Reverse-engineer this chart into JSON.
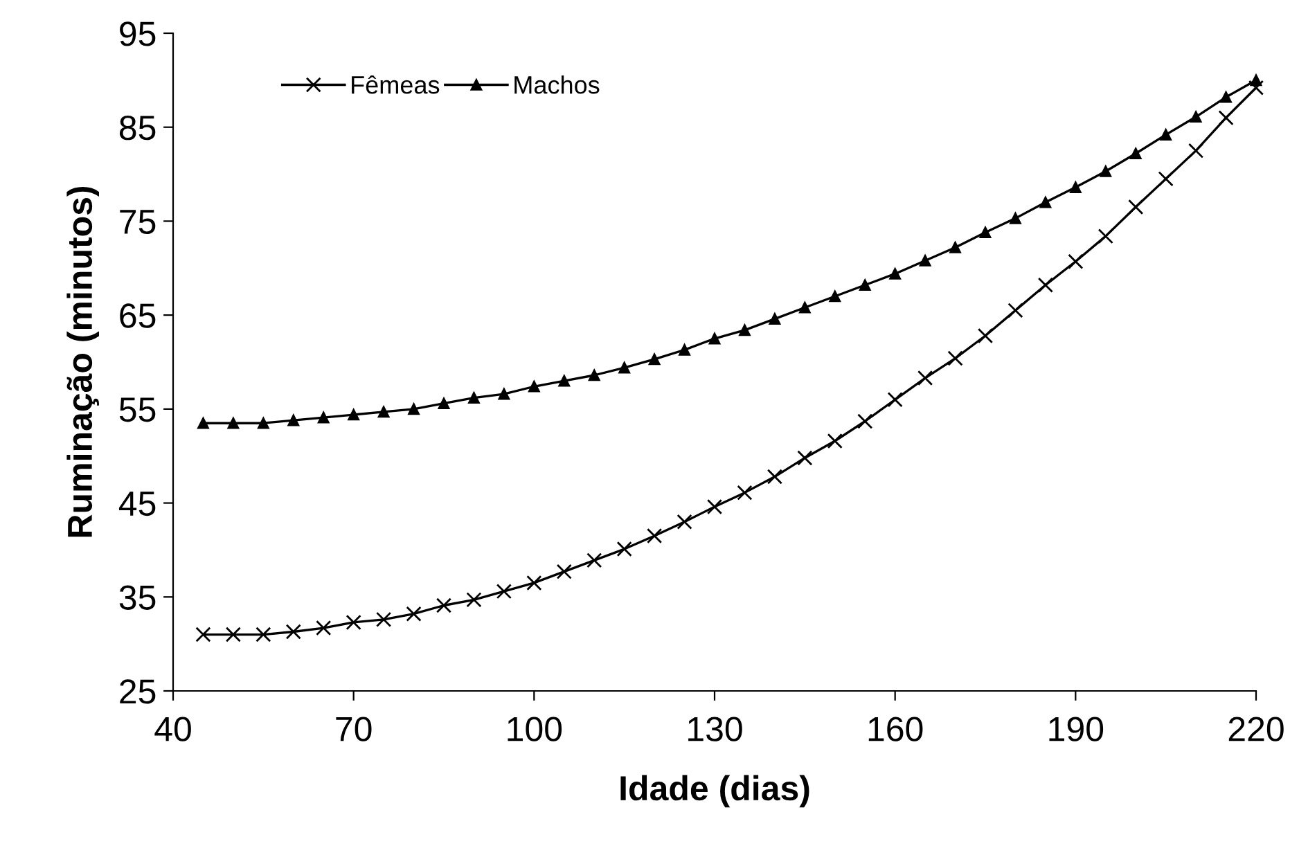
{
  "chart_data": {
    "type": "line",
    "xlabel": "Idade (dias)",
    "ylabel": "Ruminação (minutos)",
    "x": [
      45,
      50,
      55,
      60,
      65,
      70,
      75,
      80,
      85,
      90,
      95,
      100,
      105,
      110,
      115,
      120,
      125,
      130,
      135,
      140,
      145,
      150,
      155,
      160,
      165,
      170,
      175,
      180,
      185,
      190,
      195,
      200,
      205,
      210,
      215,
      220
    ],
    "series": [
      {
        "name": "Fêmeas",
        "color": "#000000",
        "marker": "cross",
        "values": [
          31.0,
          31.0,
          31.0,
          31.3,
          31.7,
          32.3,
          32.6,
          33.2,
          34.1,
          34.7,
          35.6,
          36.5,
          37.7,
          38.9,
          40.1,
          41.5,
          43.0,
          44.6,
          46.1,
          47.8,
          49.8,
          51.6,
          53.7,
          56.0,
          58.3,
          60.4,
          62.8,
          65.5,
          68.2,
          70.7,
          73.4,
          76.5,
          79.5,
          82.5,
          86.0,
          89.2
        ]
      },
      {
        "name": "Machos",
        "color": "#000000",
        "marker": "triangle",
        "values": [
          53.5,
          53.5,
          53.5,
          53.8,
          54.1,
          54.4,
          54.7,
          55.0,
          55.6,
          56.2,
          56.6,
          57.4,
          58.0,
          58.6,
          59.4,
          60.3,
          61.3,
          62.5,
          63.4,
          64.6,
          65.8,
          67.0,
          68.2,
          69.4,
          70.8,
          72.2,
          73.8,
          75.3,
          77.0,
          78.6,
          80.3,
          82.2,
          84.2,
          86.1,
          88.2,
          90.0
        ]
      }
    ],
    "xlim": [
      40,
      220
    ],
    "xticks": [
      40,
      70,
      100,
      130,
      160,
      190,
      220
    ],
    "ylim": [
      25,
      95
    ],
    "yticks": [
      25,
      35,
      45,
      55,
      65,
      75,
      85,
      95
    ],
    "grid": false,
    "legend": "top left",
    "line_style": "solid"
  }
}
